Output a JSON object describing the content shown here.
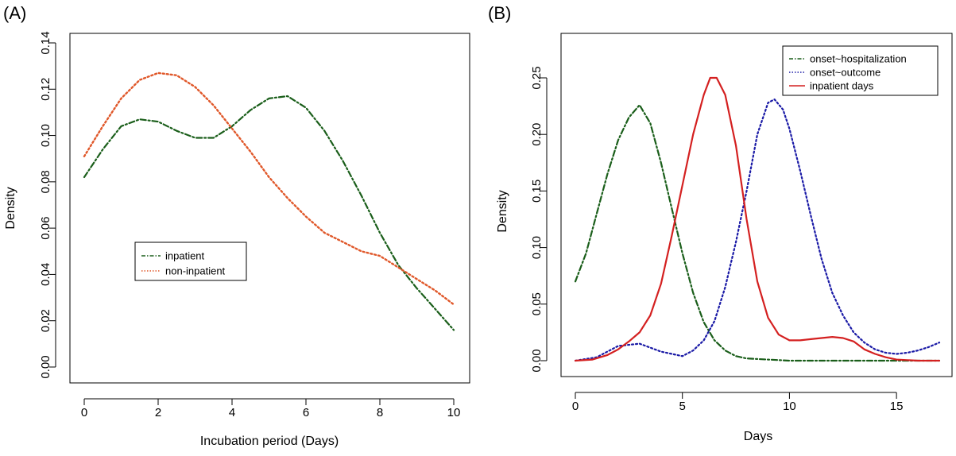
{
  "chart_data": [
    {
      "type": "line",
      "panel_label": "(A)",
      "xlabel": "Incubation period (Days)",
      "ylabel": "Density",
      "xlim": [
        0,
        10
      ],
      "ylim": [
        0,
        0.14
      ],
      "xticks": [
        0,
        2,
        4,
        6,
        8,
        10
      ],
      "xtick_labels": [
        "0",
        "2",
        "4",
        "6",
        "8",
        "10"
      ],
      "yticks": [
        0,
        0.02,
        0.04,
        0.06,
        0.08,
        0.1,
        0.12,
        0.14
      ],
      "ytick_labels": [
        "0.00",
        "0.02",
        "0.04",
        "0.06",
        "0.08",
        "0.10",
        "0.12",
        "0.14"
      ],
      "legend_position": "center-left",
      "series": [
        {
          "name": "inpatient",
          "color": "#1a5e1a",
          "dash": "dashdot",
          "points": [
            [
              0,
              0.082
            ],
            [
              0.5,
              0.094
            ],
            [
              1.0,
              0.104
            ],
            [
              1.5,
              0.107
            ],
            [
              2.0,
              0.106
            ],
            [
              2.5,
              0.102
            ],
            [
              3.0,
              0.099
            ],
            [
              3.5,
              0.099
            ],
            [
              4.0,
              0.104
            ],
            [
              4.5,
              0.111
            ],
            [
              5.0,
              0.116
            ],
            [
              5.5,
              0.117
            ],
            [
              6.0,
              0.112
            ],
            [
              6.5,
              0.102
            ],
            [
              7.0,
              0.089
            ],
            [
              7.5,
              0.074
            ],
            [
              8.0,
              0.058
            ],
            [
              8.5,
              0.044
            ],
            [
              9.0,
              0.034
            ],
            [
              9.5,
              0.025
            ],
            [
              10.0,
              0.016
            ]
          ]
        },
        {
          "name": "non-inpatient",
          "color": "#e0582a",
          "dash": "dotted",
          "points": [
            [
              0,
              0.091
            ],
            [
              0.5,
              0.104
            ],
            [
              1.0,
              0.116
            ],
            [
              1.5,
              0.124
            ],
            [
              2.0,
              0.127
            ],
            [
              2.5,
              0.126
            ],
            [
              3.0,
              0.121
            ],
            [
              3.5,
              0.113
            ],
            [
              4.0,
              0.103
            ],
            [
              4.5,
              0.093
            ],
            [
              5.0,
              0.082
            ],
            [
              5.5,
              0.073
            ],
            [
              6.0,
              0.065
            ],
            [
              6.5,
              0.058
            ],
            [
              7.0,
              0.054
            ],
            [
              7.5,
              0.05
            ],
            [
              8.0,
              0.048
            ],
            [
              8.5,
              0.043
            ],
            [
              9.0,
              0.038
            ],
            [
              9.5,
              0.033
            ],
            [
              10.0,
              0.027
            ]
          ]
        }
      ]
    },
    {
      "type": "line",
      "panel_label": "(B)",
      "xlabel": "Days",
      "ylabel": "Density",
      "xlim": [
        0,
        17
      ],
      "ylim": [
        0,
        0.25
      ],
      "xticks": [
        0,
        5,
        10,
        15
      ],
      "xtick_labels": [
        "0",
        "5",
        "10",
        "15"
      ],
      "yticks": [
        0,
        0.05,
        0.1,
        0.15,
        0.2,
        0.25
      ],
      "ytick_labels": [
        "0.00",
        "0.05",
        "0.10",
        "0.15",
        "0.20",
        "0.25"
      ],
      "legend_position": "top-right",
      "series": [
        {
          "name": "onset~hospitalization",
          "color": "#1a5e1a",
          "dash": "dashdot",
          "points": [
            [
              0,
              0.07
            ],
            [
              0.5,
              0.095
            ],
            [
              1.0,
              0.13
            ],
            [
              1.5,
              0.165
            ],
            [
              2.0,
              0.195
            ],
            [
              2.5,
              0.215
            ],
            [
              3.0,
              0.226
            ],
            [
              3.5,
              0.21
            ],
            [
              4.0,
              0.175
            ],
            [
              4.5,
              0.135
            ],
            [
              5.0,
              0.095
            ],
            [
              5.5,
              0.06
            ],
            [
              6.0,
              0.034
            ],
            [
              6.5,
              0.018
            ],
            [
              7.0,
              0.009
            ],
            [
              7.5,
              0.004
            ],
            [
              8.0,
              0.002
            ],
            [
              9.0,
              0.001
            ],
            [
              10.0,
              0.0
            ],
            [
              12.0,
              0.0
            ],
            [
              15.0,
              0.0
            ],
            [
              17.0,
              0.0
            ]
          ]
        },
        {
          "name": "onset~outcome",
          "color": "#1a1aa6",
          "dash": "dotted",
          "points": [
            [
              0,
              0.0
            ],
            [
              1.0,
              0.003
            ],
            [
              2.0,
              0.013
            ],
            [
              3.0,
              0.015
            ],
            [
              4.0,
              0.008
            ],
            [
              5.0,
              0.004
            ],
            [
              5.5,
              0.009
            ],
            [
              6.0,
              0.018
            ],
            [
              6.5,
              0.035
            ],
            [
              7.0,
              0.065
            ],
            [
              7.5,
              0.105
            ],
            [
              8.0,
              0.15
            ],
            [
              8.5,
              0.2
            ],
            [
              9.0,
              0.228
            ],
            [
              9.3,
              0.231
            ],
            [
              9.7,
              0.222
            ],
            [
              10.0,
              0.205
            ],
            [
              10.5,
              0.168
            ],
            [
              11.0,
              0.128
            ],
            [
              11.5,
              0.09
            ],
            [
              12.0,
              0.06
            ],
            [
              12.5,
              0.04
            ],
            [
              13.0,
              0.025
            ],
            [
              13.5,
              0.016
            ],
            [
              14.0,
              0.01
            ],
            [
              14.5,
              0.007
            ],
            [
              15.0,
              0.006
            ],
            [
              15.5,
              0.007
            ],
            [
              16.0,
              0.009
            ],
            [
              16.5,
              0.012
            ],
            [
              17.0,
              0.016
            ]
          ]
        },
        {
          "name": "inpatient days",
          "color": "#d42020",
          "dash": "solid",
          "points": [
            [
              0,
              0.0
            ],
            [
              0.8,
              0.001
            ],
            [
              1.5,
              0.005
            ],
            [
              2.0,
              0.01
            ],
            [
              2.5,
              0.017
            ],
            [
              3.0,
              0.025
            ],
            [
              3.5,
              0.04
            ],
            [
              4.0,
              0.068
            ],
            [
              4.5,
              0.11
            ],
            [
              5.0,
              0.155
            ],
            [
              5.5,
              0.2
            ],
            [
              6.0,
              0.235
            ],
            [
              6.3,
              0.25
            ],
            [
              6.6,
              0.25
            ],
            [
              7.0,
              0.235
            ],
            [
              7.5,
              0.19
            ],
            [
              8.0,
              0.125
            ],
            [
              8.5,
              0.07
            ],
            [
              9.0,
              0.038
            ],
            [
              9.5,
              0.023
            ],
            [
              10.0,
              0.018
            ],
            [
              10.5,
              0.018
            ],
            [
              11.0,
              0.019
            ],
            [
              11.5,
              0.02
            ],
            [
              12.0,
              0.021
            ],
            [
              12.5,
              0.02
            ],
            [
              13.0,
              0.017
            ],
            [
              13.5,
              0.01
            ],
            [
              14.0,
              0.006
            ],
            [
              14.5,
              0.003
            ],
            [
              15.0,
              0.001
            ],
            [
              16.0,
              0.0
            ],
            [
              17.0,
              0.0
            ]
          ]
        }
      ]
    }
  ]
}
